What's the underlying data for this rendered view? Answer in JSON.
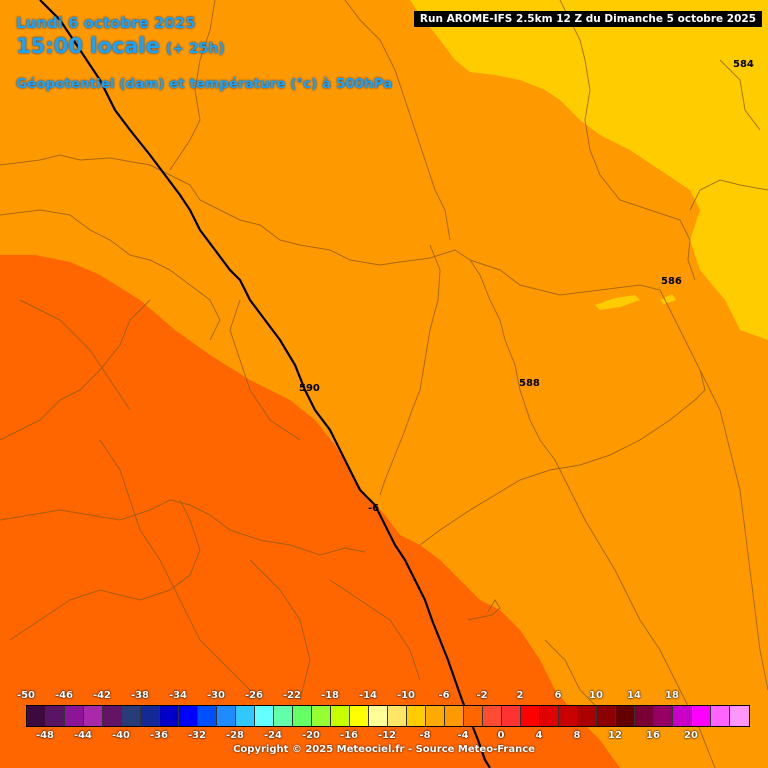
{
  "header": {
    "date_line": "Lundi 6 octobre 2025",
    "time_line": "15:00 locale",
    "lead_time": "(+ 25h)",
    "variable_line": "Géopotentiel (dam) et température (°c) à 500hPa",
    "run_info": "Run AROME-IFS 2.5km 12 Z du Dimanche 5 octobre 2025"
  },
  "map": {
    "contour_labels": [
      "584",
      "586",
      "588",
      "590",
      "-6"
    ],
    "fill_colors": {
      "temp_minus_8": "#ffcc00",
      "temp_minus_6": "#ff9900",
      "temp_minus_4": "#ff6600"
    },
    "contour_color": "#000000",
    "border_color": "#8a5a1a"
  },
  "legend": {
    "top_ticks": [
      "-50",
      "-46",
      "-42",
      "-38",
      "-34",
      "-30",
      "-26",
      "-22",
      "-18",
      "-14",
      "-10",
      "-6",
      "-2",
      "2",
      "6",
      "10",
      "14",
      "18"
    ],
    "bottom_ticks": [
      "-48",
      "-44",
      "-40",
      "-36",
      "-32",
      "-28",
      "-24",
      "-20",
      "-16",
      "-12",
      "-8",
      "-4",
      "0",
      "4",
      "8",
      "12",
      "16",
      "20"
    ],
    "colors": [
      "#3c0a3c",
      "#5a1464",
      "#8c1496",
      "#aa28aa",
      "#641464",
      "#283c78",
      "#142896",
      "#0000c8",
      "#0000ff",
      "#0050ff",
      "#1e8cff",
      "#32c8ff",
      "#64ffff",
      "#64ffaa",
      "#64ff64",
      "#96ff32",
      "#c8ff00",
      "#ffff00",
      "#ffff96",
      "#ffe664",
      "#ffcc00",
      "#ffaa00",
      "#ff9900",
      "#ff6600",
      "#ff4b32",
      "#ff3232",
      "#ff0000",
      "#e10000",
      "#c80000",
      "#aa0000",
      "#8c0000",
      "#640000",
      "#780032",
      "#960064",
      "#c800c8",
      "#ff00ff",
      "#ff64ff",
      "#ff96ff"
    ]
  },
  "footer": {
    "copyright": "Copyright © 2025 Meteociel.fr - Source Meteo-France"
  }
}
